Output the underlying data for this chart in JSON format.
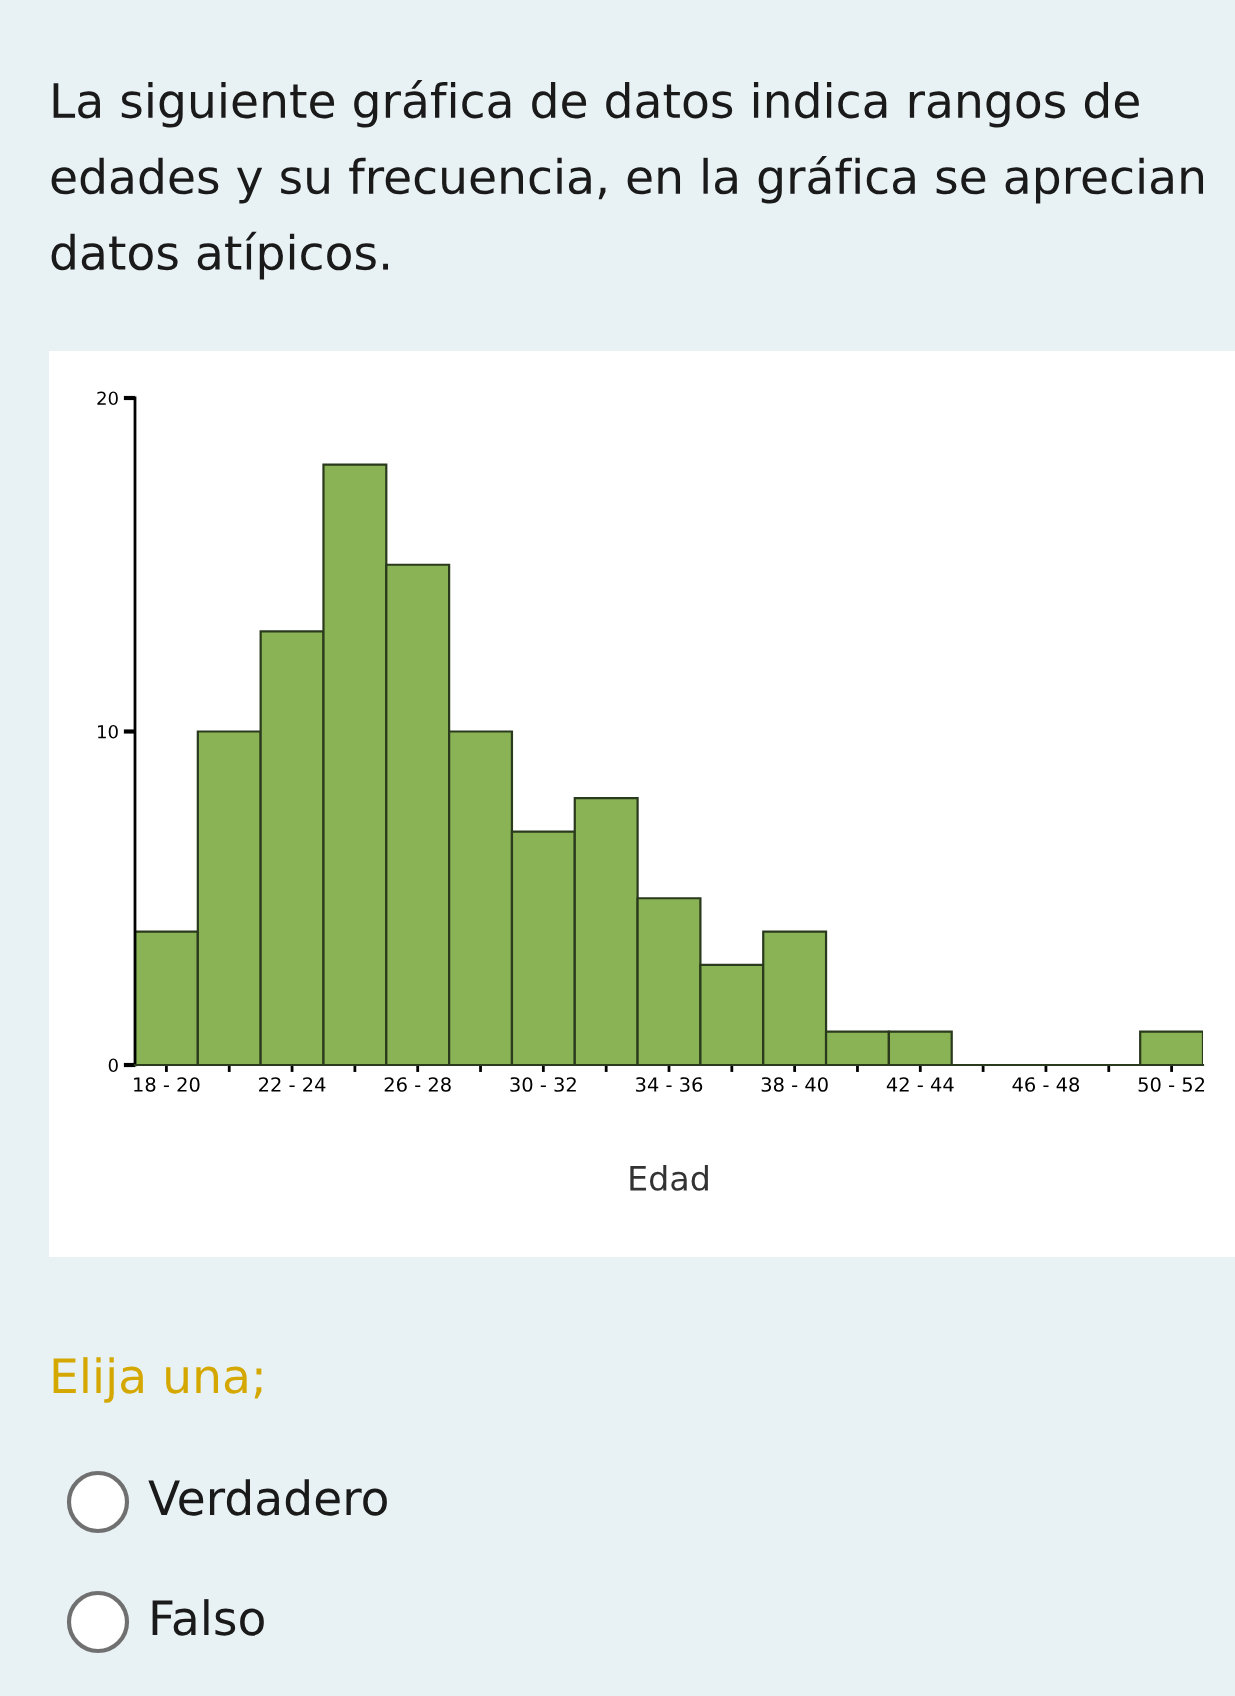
{
  "chart_data": {
    "type": "bar",
    "title": "La siguiente gráfica de datos indica rangos de edades y su frecuencia, en la gráfica se aprecian datos atípicos.",
    "xlabel": "Edad",
    "categories": [
      "18 - 20",
      null,
      "22 - 24",
      null,
      "26 - 28",
      null,
      "30 - 32",
      null,
      "34 - 36",
      null,
      "38 - 40",
      null,
      "42 - 44",
      null,
      "46 - 48",
      null,
      "50 - 52"
    ],
    "values": [
      4,
      10,
      13,
      18,
      15,
      10,
      7,
      8,
      5,
      3,
      4,
      1,
      1,
      0,
      0,
      0,
      1
    ],
    "color": "#8ab356",
    "ylim": [
      0,
      20
    ],
    "yticks": [
      0,
      10,
      20
    ],
    "grid": false,
    "annotations": [
      "Elija una;",
      "Verdadero",
      "Falso"
    ]
  }
}
